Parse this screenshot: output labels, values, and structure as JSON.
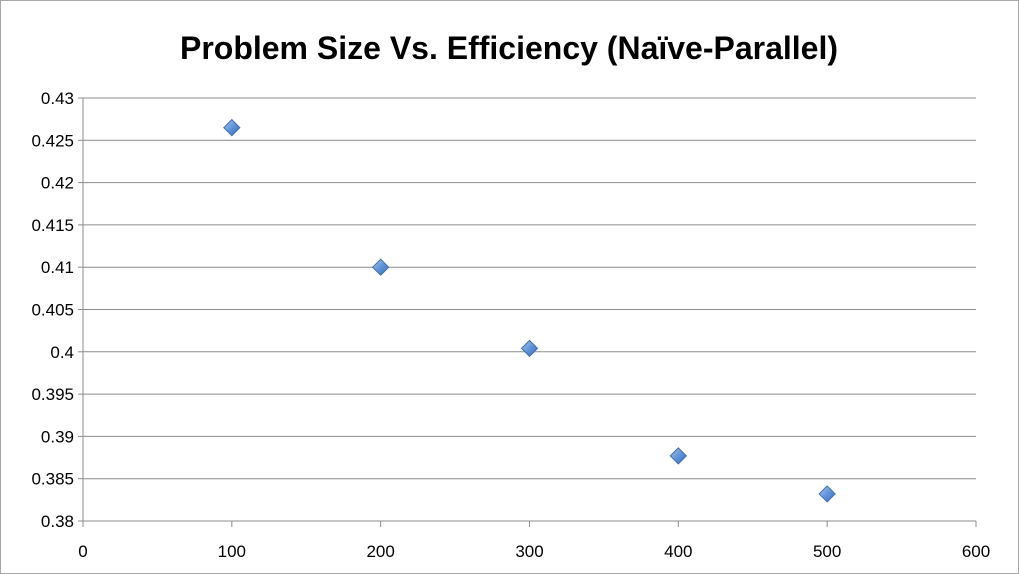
{
  "chart_data": {
    "type": "scatter",
    "title": "Problem Size Vs. Efficiency (Naïve-Parallel)",
    "xlabel": "",
    "ylabel": "",
    "xlim": [
      0,
      600
    ],
    "ylim": [
      0.38,
      0.43
    ],
    "x_ticks": [
      "0",
      "100",
      "200",
      "300",
      "400",
      "500",
      "600"
    ],
    "y_ticks": [
      "0.38",
      "0.385",
      "0.39",
      "0.395",
      "0.4",
      "0.405",
      "0.41",
      "0.415",
      "0.42",
      "0.425",
      "0.43"
    ],
    "grid": "horizontal",
    "legend": "none",
    "marker": "diamond",
    "marker_color": "#5b8fd6",
    "series": [
      {
        "x": [
          100,
          200,
          300,
          400,
          500
        ],
        "y": [
          0.4265,
          0.41,
          0.4004,
          0.3877,
          0.3832
        ]
      }
    ]
  }
}
